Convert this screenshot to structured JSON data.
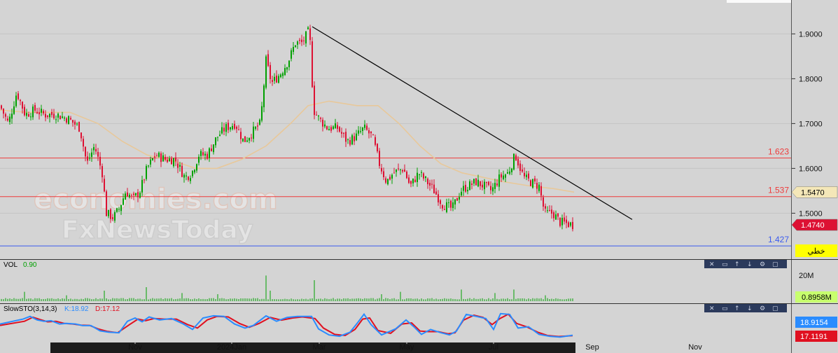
{
  "watermark": {
    "line1": "economies.com",
    "line2": "FxNewsToday"
  },
  "colors": {
    "background": "#d4d4d4",
    "bull": "#00a000",
    "bear": "#dd1133",
    "ma": "#e8c89a",
    "resistance": "#ee3b3b",
    "support": "#3b5bee",
    "trendline": "#000000",
    "stoch_k": "#2a8cff",
    "stoch_d": "#e01020",
    "volume": "#00a000"
  },
  "chart_data": [
    {
      "type": "candlestick",
      "y_ticks": [
        "1.9000",
        "1.8000",
        "1.7000",
        "1.6000",
        "1.5000"
      ],
      "ylim": [
        1.41,
        1.96
      ],
      "x_ticks": [
        "Nov",
        "2024Jan",
        "Mar",
        "May",
        "Jul",
        "Sep",
        "Nov"
      ],
      "levels": [
        {
          "name": "resistance-1",
          "value": 1.623,
          "label": "1.623",
          "color": "#ee3b3b"
        },
        {
          "name": "resistance-2",
          "value": 1.537,
          "label": "1.537",
          "color": "#ee3b3b"
        },
        {
          "name": "support-1",
          "value": 1.427,
          "label": "1.427",
          "color": "#3b5bee"
        }
      ],
      "price_tags": [
        {
          "label": "1.5470",
          "value": 1.547,
          "bg": "#f4e7b8",
          "fg": "#000000"
        },
        {
          "label": "1.4740",
          "value": 1.474,
          "bg": "#dd1133",
          "fg": "#ffffff"
        }
      ],
      "linear_label": "خطي",
      "close_path": [
        [
          0,
          1.74
        ],
        [
          12,
          1.7
        ],
        [
          24,
          1.77
        ],
        [
          36,
          1.72
        ],
        [
          50,
          1.73
        ],
        [
          64,
          1.72
        ],
        [
          80,
          1.72
        ],
        [
          98,
          1.71
        ],
        [
          114,
          1.69
        ],
        [
          124,
          1.61
        ],
        [
          135,
          1.65
        ],
        [
          146,
          1.59
        ],
        [
          152,
          1.5
        ],
        [
          162,
          1.49
        ],
        [
          170,
          1.51
        ],
        [
          180,
          1.55
        ],
        [
          190,
          1.53
        ],
        [
          200,
          1.55
        ],
        [
          210,
          1.6
        ],
        [
          222,
          1.63
        ],
        [
          236,
          1.62
        ],
        [
          250,
          1.62
        ],
        [
          264,
          1.58
        ],
        [
          274,
          1.59
        ],
        [
          284,
          1.63
        ],
        [
          296,
          1.63
        ],
        [
          310,
          1.67
        ],
        [
          322,
          1.69
        ],
        [
          336,
          1.7
        ],
        [
          348,
          1.66
        ],
        [
          360,
          1.68
        ],
        [
          372,
          1.7
        ],
        [
          380,
          1.84
        ],
        [
          388,
          1.79
        ],
        [
          400,
          1.81
        ],
        [
          412,
          1.84
        ],
        [
          422,
          1.88
        ],
        [
          432,
          1.88
        ],
        [
          442,
          1.91
        ],
        [
          448,
          1.73
        ],
        [
          456,
          1.71
        ],
        [
          468,
          1.69
        ],
        [
          482,
          1.69
        ],
        [
          496,
          1.66
        ],
        [
          508,
          1.67
        ],
        [
          520,
          1.69
        ],
        [
          532,
          1.67
        ],
        [
          542,
          1.61
        ],
        [
          552,
          1.57
        ],
        [
          562,
          1.59
        ],
        [
          576,
          1.6
        ],
        [
          586,
          1.56
        ],
        [
          598,
          1.59
        ],
        [
          610,
          1.57
        ],
        [
          620,
          1.55
        ],
        [
          632,
          1.52
        ],
        [
          646,
          1.51
        ],
        [
          658,
          1.55
        ],
        [
          668,
          1.56
        ],
        [
          680,
          1.57
        ],
        [
          692,
          1.56
        ],
        [
          702,
          1.55
        ],
        [
          714,
          1.58
        ],
        [
          726,
          1.59
        ],
        [
          736,
          1.63
        ],
        [
          748,
          1.58
        ],
        [
          758,
          1.57
        ],
        [
          770,
          1.56
        ],
        [
          778,
          1.5
        ],
        [
          790,
          1.5
        ],
        [
          800,
          1.48
        ],
        [
          818,
          1.474
        ]
      ],
      "ma_path": [
        [
          0,
          1.73
        ],
        [
          40,
          1.725
        ],
        [
          100,
          1.725
        ],
        [
          140,
          1.7
        ],
        [
          175,
          1.66
        ],
        [
          210,
          1.63
        ],
        [
          250,
          1.615
        ],
        [
          280,
          1.6
        ],
        [
          310,
          1.6
        ],
        [
          345,
          1.62
        ],
        [
          380,
          1.65
        ],
        [
          415,
          1.7
        ],
        [
          440,
          1.74
        ],
        [
          470,
          1.75
        ],
        [
          510,
          1.74
        ],
        [
          540,
          1.74
        ],
        [
          570,
          1.7
        ],
        [
          600,
          1.65
        ],
        [
          630,
          1.61
        ],
        [
          660,
          1.59
        ],
        [
          690,
          1.58
        ],
        [
          720,
          1.57
        ],
        [
          760,
          1.56
        ],
        [
          790,
          1.555
        ],
        [
          820,
          1.547
        ]
      ],
      "trendline": [
        [
          446,
          1.916
        ],
        [
          903,
          1.486
        ]
      ]
    },
    {
      "type": "bar",
      "name": "VOL",
      "value_label": "0.90",
      "y_tick": "20M",
      "ylim": [
        0,
        27
      ],
      "tag": {
        "label": "0.8958M",
        "bg": "#c8ff6e",
        "fg": "#000000"
      },
      "base_level": 1.5,
      "spikes": [
        {
          "x": 34,
          "v": 8
        },
        {
          "x": 95,
          "v": 5
        },
        {
          "x": 148,
          "v": 9
        },
        {
          "x": 210,
          "v": 12
        },
        {
          "x": 260,
          "v": 7
        },
        {
          "x": 312,
          "v": 6
        },
        {
          "x": 381,
          "v": 22
        },
        {
          "x": 385,
          "v": 9
        },
        {
          "x": 448,
          "v": 18
        },
        {
          "x": 545,
          "v": 6
        },
        {
          "x": 572,
          "v": 8
        },
        {
          "x": 658,
          "v": 10
        },
        {
          "x": 706,
          "v": 7
        },
        {
          "x": 735,
          "v": 10
        },
        {
          "x": 778,
          "v": 5
        }
      ]
    },
    {
      "type": "line",
      "name": "SlowSTO(3,14,3)",
      "k_label": "K:18.92",
      "d_label": "D:17.12",
      "ylim": [
        0,
        100
      ],
      "k_tag": {
        "label": "18.9154",
        "bg": "#2a8cff",
        "fg": "#ffffff"
      },
      "d_tag": {
        "label": "17.1191",
        "bg": "#e01020",
        "fg": "#ffffff"
      },
      "k_path": [
        [
          0,
          60
        ],
        [
          33,
          78
        ],
        [
          43,
          88
        ],
        [
          53,
          75
        ],
        [
          63,
          70
        ],
        [
          73,
          72
        ],
        [
          85,
          60
        ],
        [
          95,
          62
        ],
        [
          108,
          60
        ],
        [
          118,
          54
        ],
        [
          130,
          54
        ],
        [
          143,
          35
        ],
        [
          155,
          30
        ],
        [
          170,
          28
        ],
        [
          182,
          70
        ],
        [
          193,
          82
        ],
        [
          203,
          68
        ],
        [
          213,
          86
        ],
        [
          228,
          75
        ],
        [
          245,
          80
        ],
        [
          262,
          60
        ],
        [
          275,
          40
        ],
        [
          290,
          82
        ],
        [
          305,
          90
        ],
        [
          320,
          88
        ],
        [
          335,
          60
        ],
        [
          350,
          45
        ],
        [
          362,
          55
        ],
        [
          380,
          90
        ],
        [
          395,
          70
        ],
        [
          410,
          84
        ],
        [
          425,
          88
        ],
        [
          445,
          88
        ],
        [
          455,
          42
        ],
        [
          470,
          20
        ],
        [
          485,
          15
        ],
        [
          500,
          30
        ],
        [
          510,
          62
        ],
        [
          520,
          96
        ],
        [
          530,
          58
        ],
        [
          545,
          20
        ],
        [
          565,
          42
        ],
        [
          580,
          75
        ],
        [
          592,
          48
        ],
        [
          602,
          22
        ],
        [
          615,
          40
        ],
        [
          630,
          28
        ],
        [
          642,
          20
        ],
        [
          652,
          34
        ],
        [
          666,
          95
        ],
        [
          680,
          88
        ],
        [
          694,
          80
        ],
        [
          705,
          40
        ],
        [
          715,
          98
        ],
        [
          728,
          95
        ],
        [
          740,
          45
        ],
        [
          755,
          50
        ],
        [
          770,
          22
        ],
        [
          785,
          15
        ],
        [
          800,
          12
        ],
        [
          818,
          18.9
        ]
      ],
      "d_path": [
        [
          0,
          55
        ],
        [
          35,
          70
        ],
        [
          47,
          85
        ],
        [
          58,
          76
        ],
        [
          68,
          68
        ],
        [
          80,
          70
        ],
        [
          92,
          62
        ],
        [
          104,
          60
        ],
        [
          116,
          56
        ],
        [
          128,
          55
        ],
        [
          140,
          42
        ],
        [
          153,
          33
        ],
        [
          168,
          28
        ],
        [
          185,
          58
        ],
        [
          197,
          78
        ],
        [
          208,
          72
        ],
        [
          220,
          80
        ],
        [
          235,
          78
        ],
        [
          252,
          78
        ],
        [
          268,
          58
        ],
        [
          282,
          45
        ],
        [
          296,
          75
        ],
        [
          310,
          88
        ],
        [
          326,
          86
        ],
        [
          342,
          62
        ],
        [
          356,
          48
        ],
        [
          370,
          62
        ],
        [
          386,
          84
        ],
        [
          402,
          74
        ],
        [
          418,
          82
        ],
        [
          432,
          86
        ],
        [
          450,
          80
        ],
        [
          462,
          45
        ],
        [
          478,
          22
        ],
        [
          493,
          18
        ],
        [
          507,
          40
        ],
        [
          518,
          78
        ],
        [
          528,
          82
        ],
        [
          540,
          36
        ],
        [
          558,
          26
        ],
        [
          574,
          60
        ],
        [
          588,
          64
        ],
        [
          600,
          34
        ],
        [
          612,
          32
        ],
        [
          626,
          32
        ],
        [
          640,
          24
        ],
        [
          650,
          28
        ],
        [
          662,
          74
        ],
        [
          677,
          92
        ],
        [
          690,
          84
        ],
        [
          703,
          58
        ],
        [
          714,
          80
        ],
        [
          726,
          96
        ],
        [
          738,
          62
        ],
        [
          752,
          50
        ],
        [
          768,
          30
        ],
        [
          782,
          18
        ],
        [
          798,
          14
        ],
        [
          818,
          17.1
        ]
      ]
    }
  ]
}
